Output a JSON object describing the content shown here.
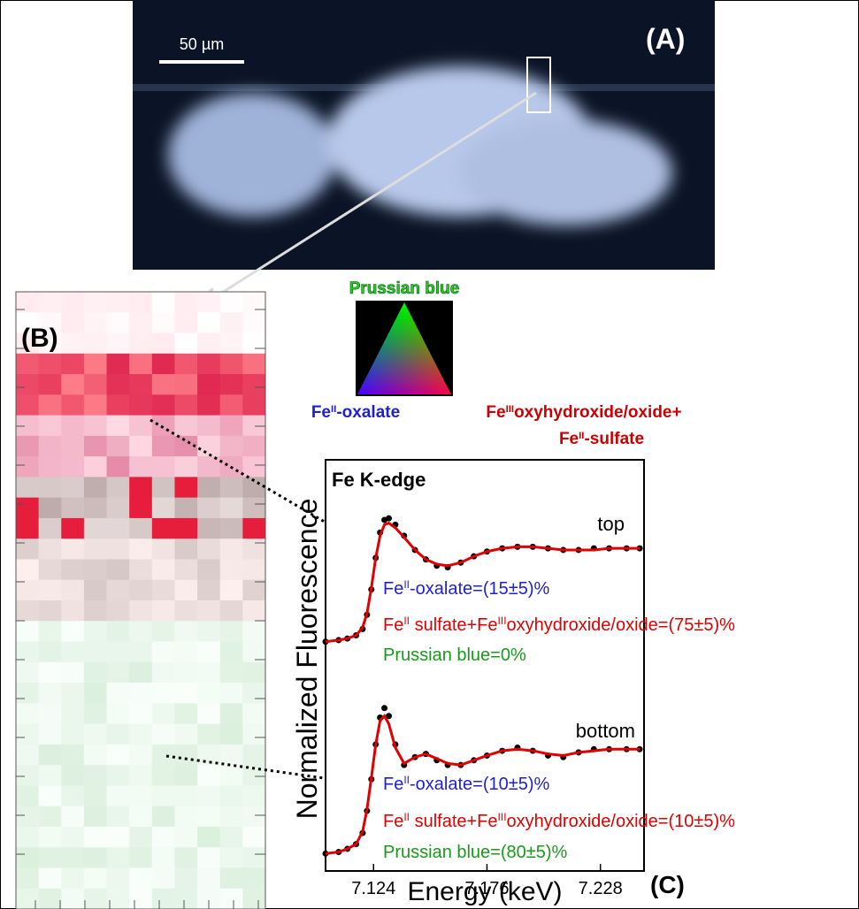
{
  "panel_a": {
    "label": "(A)",
    "scale_bar": "50 µm"
  },
  "panel_b": {
    "label": "(B)"
  },
  "triangle": {
    "top": "Prussian blue",
    "left": [
      "Fe",
      "II",
      "-oxalate"
    ],
    "right_1": [
      "Fe",
      "III",
      "oxyhydroxide/oxide+"
    ],
    "right_2": [
      "Fe",
      "II",
      "-sulfate"
    ]
  },
  "chart_data": {
    "type": "line",
    "title": "Fe K-edge",
    "panel_label": "(C)",
    "xlabel": "Energy (keV)",
    "ylabel": "Normalized Fluorescence",
    "xlim": [
      7.102,
      7.248
    ],
    "xticks": [
      7.124,
      7.176,
      7.228
    ],
    "ylim": [
      0,
      2.6
    ],
    "x": [
      7.102,
      7.108,
      7.112,
      7.116,
      7.119,
      7.121,
      7.123,
      7.125,
      7.127,
      7.129,
      7.131,
      7.134,
      7.138,
      7.143,
      7.148,
      7.153,
      7.158,
      7.164,
      7.17,
      7.176,
      7.183,
      7.19,
      7.197,
      7.204,
      7.211,
      7.218,
      7.225,
      7.232,
      7.24,
      7.246
    ],
    "series": [
      {
        "name": "top",
        "color": "#000000",
        "style": "dots",
        "values": [
          1.45,
          1.46,
          1.47,
          1.49,
          1.53,
          1.62,
          1.78,
          1.98,
          2.14,
          2.22,
          2.23,
          2.19,
          2.12,
          2.03,
          1.97,
          1.93,
          1.92,
          1.95,
          1.99,
          2.02,
          2.04,
          2.05,
          2.05,
          2.04,
          2.03,
          2.03,
          2.04,
          2.04,
          2.04,
          2.04
        ]
      },
      {
        "color": "#e00000",
        "style": "line",
        "values": [
          1.45,
          1.46,
          1.47,
          1.49,
          1.54,
          1.63,
          1.79,
          1.98,
          2.12,
          2.19,
          2.2,
          2.17,
          2.11,
          2.03,
          1.97,
          1.94,
          1.93,
          1.95,
          1.99,
          2.02,
          2.04,
          2.05,
          2.05,
          2.04,
          2.03,
          2.03,
          2.03,
          2.04,
          2.04,
          2.04
        ]
      },
      {
        "name": "bottom",
        "color": "#000000",
        "style": "dots",
        "values": [
          0.11,
          0.12,
          0.14,
          0.17,
          0.24,
          0.38,
          0.58,
          0.8,
          0.97,
          1.03,
          0.98,
          0.8,
          0.67,
          0.72,
          0.74,
          0.7,
          0.67,
          0.67,
          0.7,
          0.73,
          0.76,
          0.78,
          0.76,
          0.73,
          0.72,
          0.75,
          0.77,
          0.77,
          0.77,
          0.77
        ]
      },
      {
        "color": "#e00000",
        "style": "line",
        "values": [
          0.11,
          0.12,
          0.14,
          0.17,
          0.25,
          0.39,
          0.59,
          0.8,
          0.95,
          0.98,
          0.93,
          0.78,
          0.68,
          0.72,
          0.74,
          0.71,
          0.68,
          0.67,
          0.7,
          0.73,
          0.76,
          0.77,
          0.76,
          0.74,
          0.73,
          0.75,
          0.76,
          0.77,
          0.77,
          0.77
        ]
      }
    ],
    "annotations": [
      {
        "text": [
          "Fe",
          "II",
          "-oxalate=(15±5)%"
        ],
        "color": "#1f1fd6"
      },
      {
        "text": [
          "Fe",
          "II",
          " sulfate+Fe",
          "III",
          "oxyhydroxide/oxide=(75±5)%"
        ],
        "color": "#e00000"
      },
      {
        "text": [
          "Prussian blue=0%"
        ],
        "color": "#1a9a1a"
      },
      {
        "text": [
          "Fe",
          "II",
          "-oxalate=(10±5)%"
        ],
        "color": "#1f1fd6"
      },
      {
        "text": [
          "Fe",
          "II",
          " sulfate+Fe",
          "III",
          "oxyhydroxide/oxide=(10±5)%"
        ],
        "color": "#e00000"
      },
      {
        "text": [
          "Prussian blue=(80±5)%"
        ],
        "color": "#1a9a1a"
      }
    ]
  }
}
